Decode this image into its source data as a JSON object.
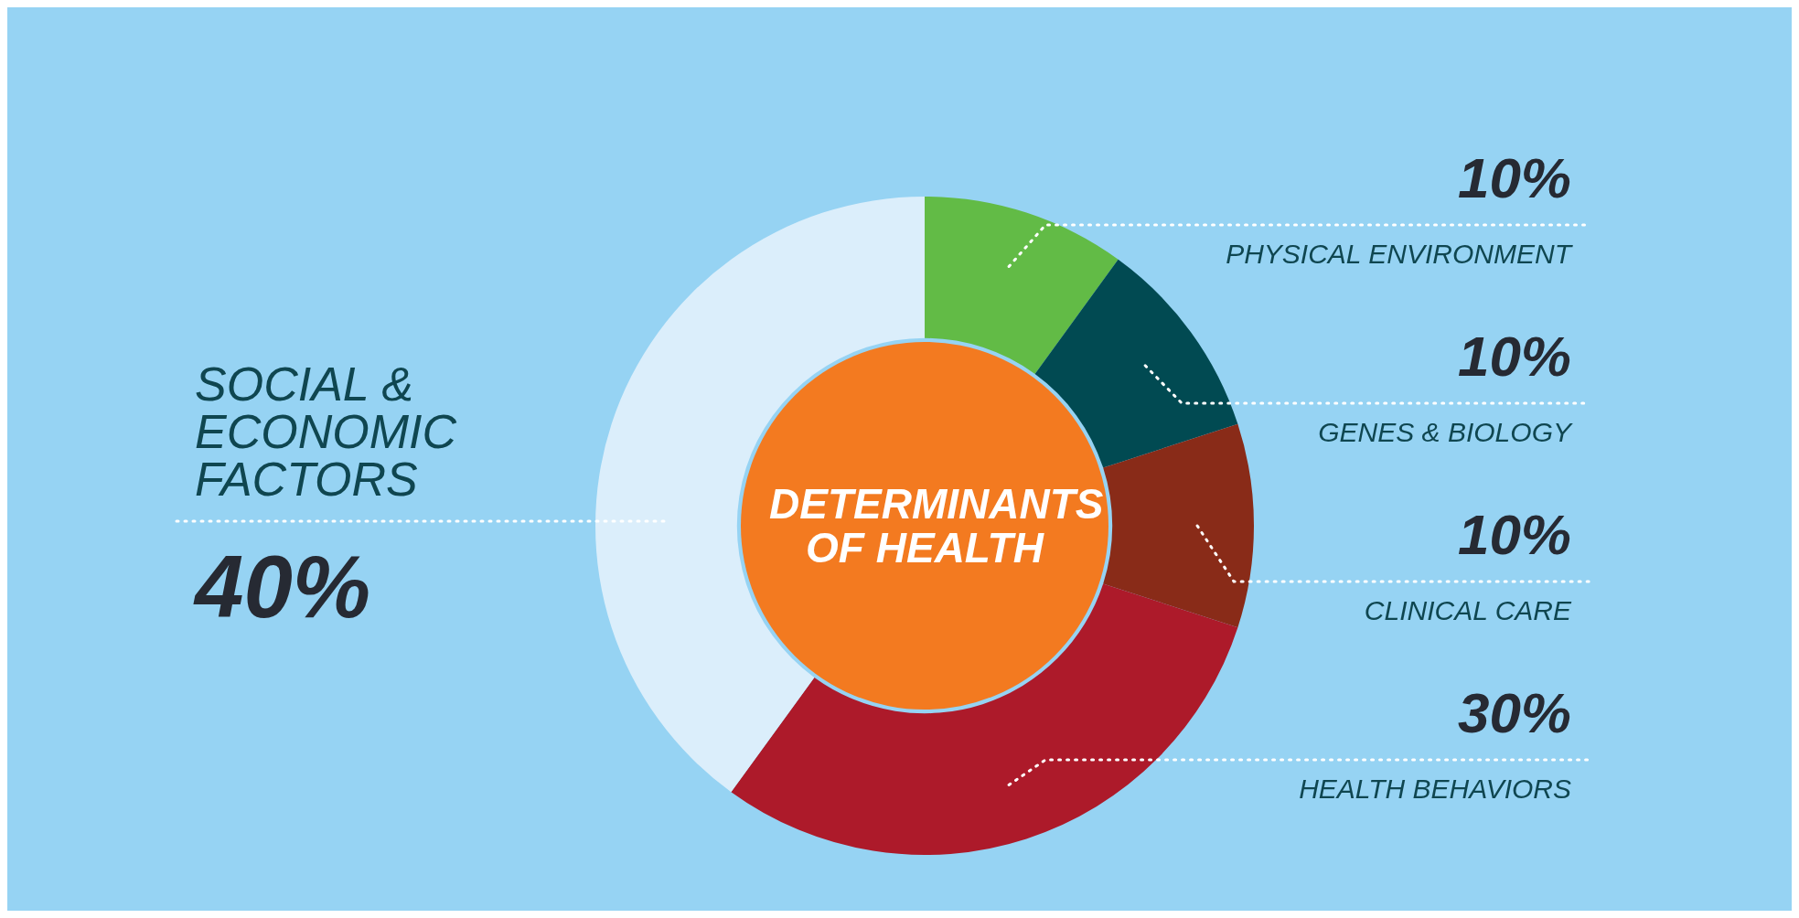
{
  "chart_data": {
    "type": "donut",
    "title": "DETERMINANTS OF HEALTH",
    "categories": [
      "PHYSICAL ENVIRONMENT",
      "GENES & BIOLOGY",
      "CLINICAL CARE",
      "HEALTH BEHAVIORS",
      "SOCIAL & ECONOMIC FACTORS"
    ],
    "values": [
      10,
      10,
      10,
      30,
      40
    ],
    "colors": [
      "#62bb46",
      "#014a52",
      "#892b18",
      "#ad1a2a",
      "#dbeefb"
    ],
    "value_labels": [
      "10%",
      "10%",
      "10%",
      "30%",
      "40%"
    ],
    "legend": false
  }
}
